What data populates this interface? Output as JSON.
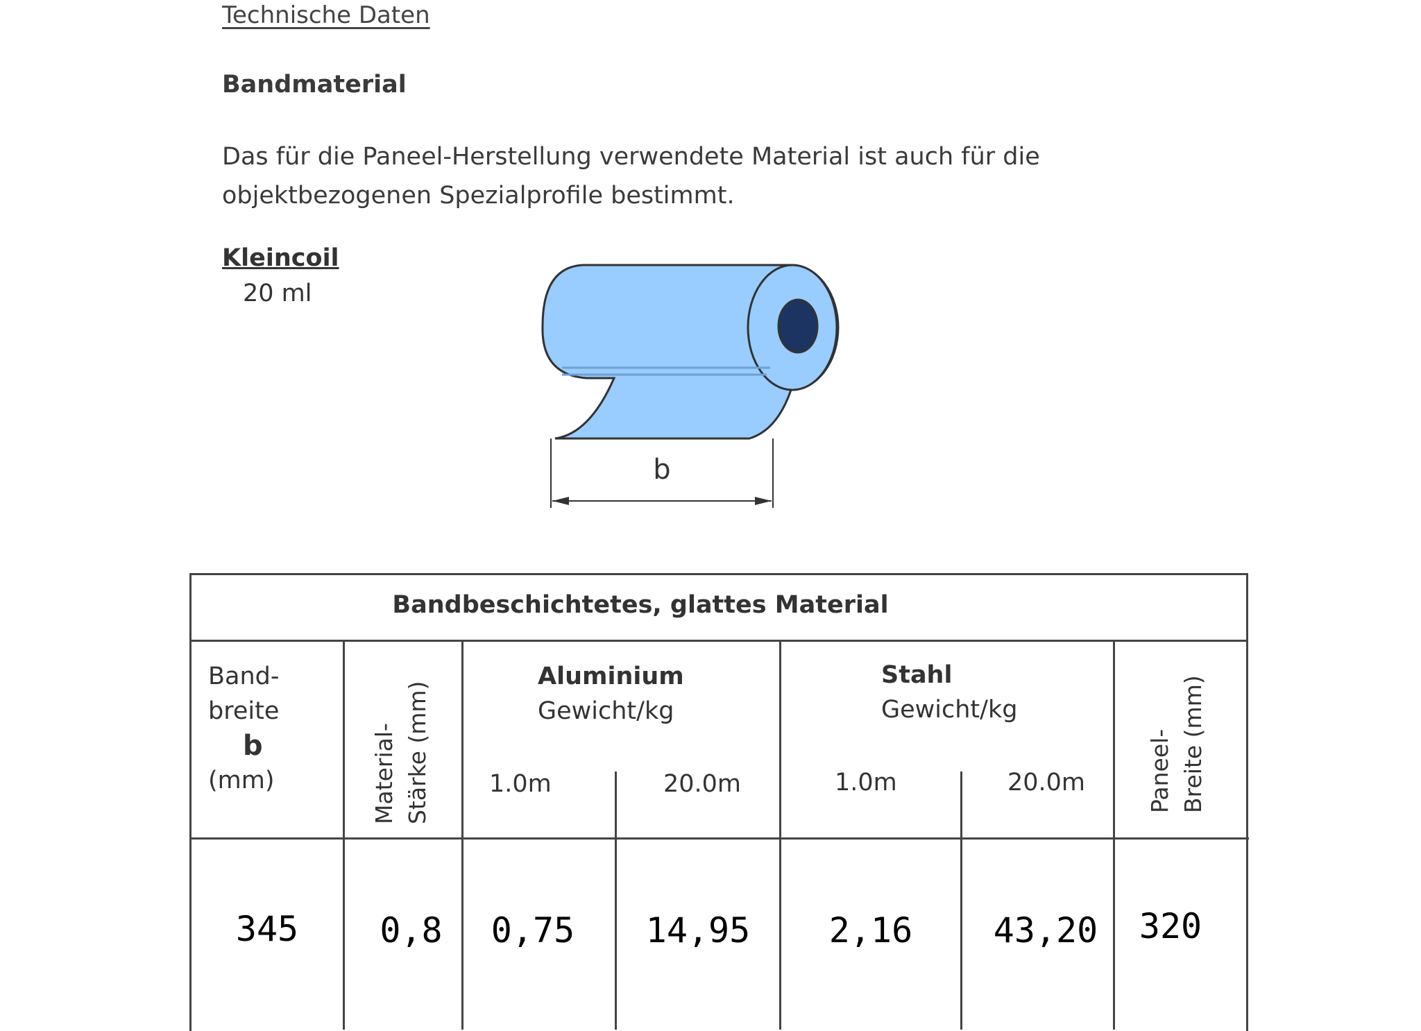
{
  "heading": "Technische Daten",
  "section": "Bandmaterial",
  "paragraph": [
    "Das für die Paneel-Herstellung verwendete Material ist auch für die",
    "objektbezogenen Spezialprofile bestimmt."
  ],
  "coil": {
    "label": "Kleincoil",
    "length": "20 ml",
    "dimension_label": "b",
    "fill_color": "#99ccff",
    "core_color": "#1c3461"
  },
  "table": {
    "title": "Bandbeschichtetes, glattes Material",
    "headers": {
      "bandbreite": [
        "Band-",
        "breite",
        "b",
        "(mm)"
      ],
      "staerke": [
        "Material-",
        "Stärke (mm)"
      ],
      "aluminium": [
        "Aluminium",
        "Gewicht/kg"
      ],
      "stahl": [
        "Stahl",
        "Gewicht/kg"
      ],
      "sub_1m": "1.0m",
      "sub_20m": "20.0m",
      "paneel": [
        "Paneel-",
        "Breite (mm)"
      ]
    },
    "rows": [
      {
        "bandbreite": "345",
        "staerke": "0,8",
        "alu_1m": "0,75",
        "alu_20m": "14,95",
        "stahl_1m": "2,16",
        "stahl_20m": "43,20",
        "paneel": "320"
      }
    ]
  }
}
